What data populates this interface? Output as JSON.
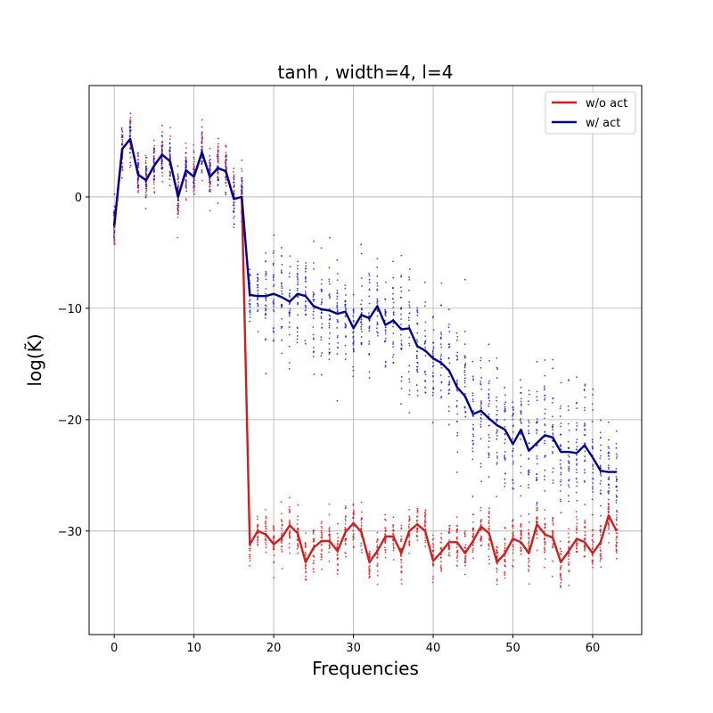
{
  "chart_data": {
    "type": "line",
    "title": "tanh , width=4, l=4",
    "xlabel": "Frequencies",
    "ylabel": "log(K̃)",
    "xlim": [
      -3.15,
      66.15
    ],
    "ylim": [
      -39.3,
      10.0
    ],
    "xticks": [
      0,
      10,
      20,
      30,
      40,
      50,
      60
    ],
    "yticks": [
      0,
      -10,
      -20,
      -30
    ],
    "grid": true,
    "legend_position": "top-right",
    "x": [
      0,
      1,
      2,
      3,
      4,
      5,
      6,
      7,
      8,
      9,
      10,
      11,
      12,
      13,
      14,
      15,
      16,
      17,
      18,
      19,
      20,
      21,
      22,
      23,
      24,
      25,
      26,
      27,
      28,
      29,
      30,
      31,
      32,
      33,
      34,
      35,
      36,
      37,
      38,
      39,
      40,
      41,
      42,
      43,
      44,
      45,
      46,
      47,
      48,
      49,
      50,
      51,
      52,
      53,
      54,
      55,
      56,
      57,
      58,
      59,
      60,
      61,
      62,
      63
    ],
    "series": [
      {
        "name": "w/o act",
        "color": "#cc1f1f",
        "values": [
          -2.6,
          4.3,
          5.2,
          2.0,
          1.5,
          2.8,
          3.8,
          3.2,
          0.0,
          2.4,
          1.8,
          4.0,
          1.8,
          2.6,
          2.3,
          -0.2,
          0.0,
          -31.2,
          -30.0,
          -30.3,
          -31.2,
          -30.6,
          -29.5,
          -30.2,
          -32.8,
          -31.5,
          -30.9,
          -30.9,
          -31.8,
          -30.1,
          -29.3,
          -30.1,
          -32.8,
          -31.8,
          -30.5,
          -30.5,
          -32.0,
          -30.0,
          -29.4,
          -30.0,
          -32.7,
          -31.9,
          -31.0,
          -31.0,
          -32.0,
          -30.9,
          -29.6,
          -30.2,
          -32.8,
          -32.0,
          -30.7,
          -31.0,
          -32.0,
          -29.4,
          -30.3,
          -30.6,
          -32.8,
          -31.8,
          -30.7,
          -31.0,
          -32.0,
          -31.0,
          -28.6,
          -30.0
        ],
        "spread": [
          2.5,
          2.5,
          2.5,
          2.5,
          2.5,
          2.5,
          2.5,
          2.5,
          2.5,
          2.5,
          2.5,
          2.5,
          2.5,
          2.5,
          2.5,
          2.5,
          2.5,
          2.5,
          2.5,
          2.5,
          2.5,
          2.5,
          2.5,
          2.5,
          2.5,
          2.5,
          2.5,
          2.5,
          2.5,
          2.5,
          2.5,
          2.5,
          2.5,
          2.5,
          2.5,
          2.5,
          2.5,
          2.5,
          2.5,
          2.5,
          2.5,
          2.5,
          2.5,
          2.5,
          2.5,
          2.5,
          2.5,
          2.5,
          2.5,
          2.5,
          2.5,
          2.5,
          2.5,
          2.5,
          2.5,
          2.5,
          2.5,
          2.5,
          2.5,
          2.5,
          2.5,
          2.5,
          2.5,
          2.5
        ]
      },
      {
        "name": "w/ act",
        "color": "#00008b",
        "values": [
          -2.6,
          4.3,
          5.2,
          2.0,
          1.5,
          2.8,
          3.8,
          3.2,
          0.0,
          2.4,
          1.8,
          4.0,
          1.8,
          2.6,
          2.3,
          -0.2,
          0.0,
          -8.8,
          -8.9,
          -8.9,
          -8.7,
          -9.0,
          -9.4,
          -8.7,
          -8.9,
          -9.8,
          -10.1,
          -10.2,
          -10.5,
          -10.3,
          -11.8,
          -10.6,
          -10.9,
          -9.8,
          -11.5,
          -11.1,
          -11.9,
          -11.8,
          -13.4,
          -13.8,
          -14.5,
          -14.9,
          -15.6,
          -17.1,
          -17.9,
          -19.5,
          -19.2,
          -19.9,
          -20.5,
          -20.9,
          -22.2,
          -20.9,
          -22.8,
          -22.1,
          -21.4,
          -21.6,
          -22.9,
          -22.9,
          -23.0,
          -22.3,
          -23.4,
          -24.6,
          -24.7,
          -24.7
        ],
        "spread": [
          2.5,
          2.5,
          2.5,
          2.5,
          2.5,
          2.5,
          2.5,
          2.5,
          2.5,
          2.5,
          2.5,
          2.5,
          2.5,
          2.5,
          2.5,
          2.5,
          2.5,
          4.0,
          4.5,
          5.0,
          5.0,
          5.0,
          5.5,
          5.5,
          5.5,
          5.5,
          5.5,
          5.5,
          5.5,
          5.5,
          5.5,
          5.5,
          5.5,
          5.5,
          6.0,
          6.0,
          6.0,
          6.0,
          6.0,
          6.0,
          6.5,
          6.5,
          6.5,
          6.5,
          7.0,
          7.0,
          7.0,
          7.0,
          7.0,
          7.0,
          7.0,
          7.0,
          7.0,
          7.0,
          7.0,
          7.0,
          7.0,
          7.0,
          7.0,
          7.0,
          6.5,
          6.5,
          6.0,
          6.0
        ]
      }
    ]
  }
}
